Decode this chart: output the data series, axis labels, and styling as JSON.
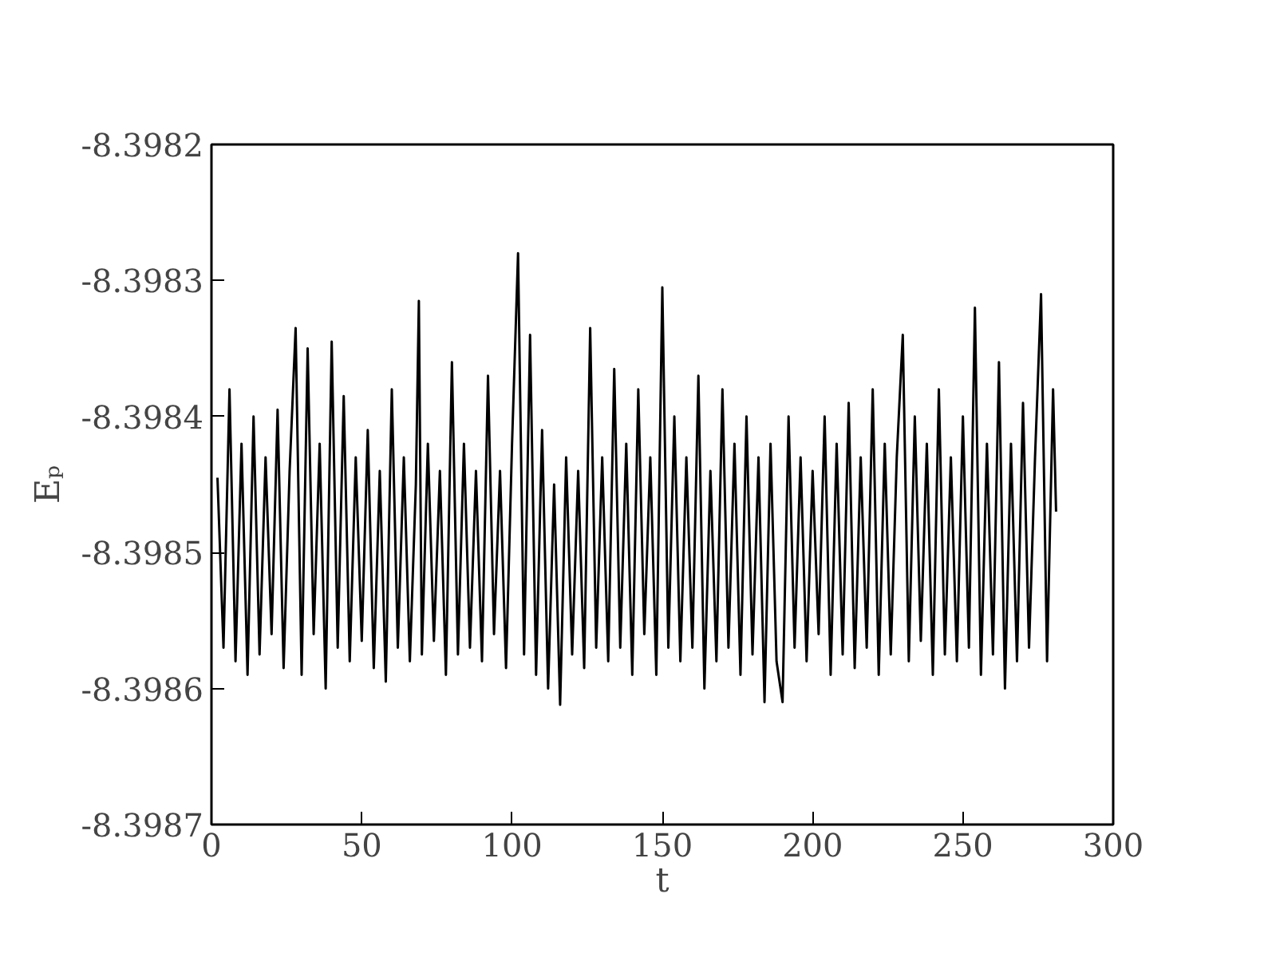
{
  "chart_data": {
    "type": "line",
    "xlabel": "t",
    "ylabel": "Eₚ",
    "xlim": [
      0,
      300
    ],
    "ylim": [
      -8.3987,
      -8.3982
    ],
    "xticks": [
      0,
      50,
      100,
      150,
      200,
      250,
      300
    ],
    "yticks": [
      -8.3987,
      -8.3986,
      -8.3985,
      -8.3984,
      -8.3983,
      -8.3982
    ],
    "marker": "none",
    "line_style": "solid",
    "series": [
      {
        "color": "#000000",
        "x": [
          2,
          4,
          6,
          8,
          10,
          12,
          14,
          16,
          18,
          20,
          22,
          24,
          26,
          28,
          30,
          32,
          34,
          36,
          38,
          40,
          42,
          44,
          46,
          48,
          50,
          52,
          54,
          56,
          58,
          60,
          62,
          64,
          66,
          68,
          69,
          70,
          72,
          74,
          76,
          78,
          80,
          82,
          84,
          86,
          88,
          90,
          92,
          94,
          96,
          98,
          100,
          102,
          104,
          106,
          108,
          110,
          112,
          114,
          116,
          118,
          120,
          122,
          124,
          126,
          128,
          130,
          132,
          134,
          136,
          138,
          140,
          142,
          144,
          146,
          148,
          150,
          152,
          154,
          156,
          158,
          160,
          162,
          164,
          166,
          168,
          170,
          172,
          174,
          176,
          178,
          180,
          182,
          184,
          186,
          188,
          190,
          192,
          194,
          196,
          198,
          200,
          202,
          204,
          206,
          208,
          210,
          212,
          214,
          216,
          218,
          220,
          222,
          224,
          226,
          228,
          230,
          232,
          234,
          236,
          238,
          240,
          242,
          244,
          246,
          248,
          250,
          252,
          254,
          256,
          258,
          260,
          262,
          264,
          266,
          268,
          270,
          272,
          274,
          276,
          278,
          280,
          281
        ],
        "values": [
          -8.398445,
          -8.39857,
          -8.39838,
          -8.39858,
          -8.39842,
          -8.39859,
          -8.3984,
          -8.398575,
          -8.39843,
          -8.39856,
          -8.398395,
          -8.398585,
          -8.39844,
          -8.398335,
          -8.39859,
          -8.39835,
          -8.39856,
          -8.39842,
          -8.3986,
          -8.398345,
          -8.39857,
          -8.398385,
          -8.39858,
          -8.39843,
          -8.398565,
          -8.39841,
          -8.398585,
          -8.39844,
          -8.398595,
          -8.39838,
          -8.39857,
          -8.39843,
          -8.39858,
          -8.39845,
          -8.398315,
          -8.398575,
          -8.39842,
          -8.398565,
          -8.39844,
          -8.39859,
          -8.39836,
          -8.398575,
          -8.39842,
          -8.39857,
          -8.39844,
          -8.39858,
          -8.39837,
          -8.39856,
          -8.39844,
          -8.398585,
          -8.39842,
          -8.39828,
          -8.398575,
          -8.39834,
          -8.39859,
          -8.39841,
          -8.3986,
          -8.39845,
          -8.398612,
          -8.39843,
          -8.398575,
          -8.39844,
          -8.398585,
          -8.398335,
          -8.39857,
          -8.39843,
          -8.39858,
          -8.398365,
          -8.39857,
          -8.39842,
          -8.39859,
          -8.39838,
          -8.39856,
          -8.39843,
          -8.39859,
          -8.398305,
          -8.39857,
          -8.3984,
          -8.39858,
          -8.39843,
          -8.39857,
          -8.39837,
          -8.3986,
          -8.39844,
          -8.39858,
          -8.39838,
          -8.39857,
          -8.39842,
          -8.39859,
          -8.3984,
          -8.398575,
          -8.39843,
          -8.39861,
          -8.39842,
          -8.39858,
          -8.39861,
          -8.3984,
          -8.39857,
          -8.39843,
          -8.39858,
          -8.39844,
          -8.39856,
          -8.3984,
          -8.39859,
          -8.39842,
          -8.398575,
          -8.39839,
          -8.398585,
          -8.39843,
          -8.39857,
          -8.39838,
          -8.39859,
          -8.39842,
          -8.398575,
          -8.39843,
          -8.39834,
          -8.39858,
          -8.3984,
          -8.398565,
          -8.39842,
          -8.39859,
          -8.39838,
          -8.398575,
          -8.39843,
          -8.39858,
          -8.3984,
          -8.39857,
          -8.39832,
          -8.39859,
          -8.39842,
          -8.398575,
          -8.39836,
          -8.3986,
          -8.39842,
          -8.39858,
          -8.39839,
          -8.39857,
          -8.39843,
          -8.39831,
          -8.39858,
          -8.39838,
          -8.39847
        ]
      }
    ]
  }
}
